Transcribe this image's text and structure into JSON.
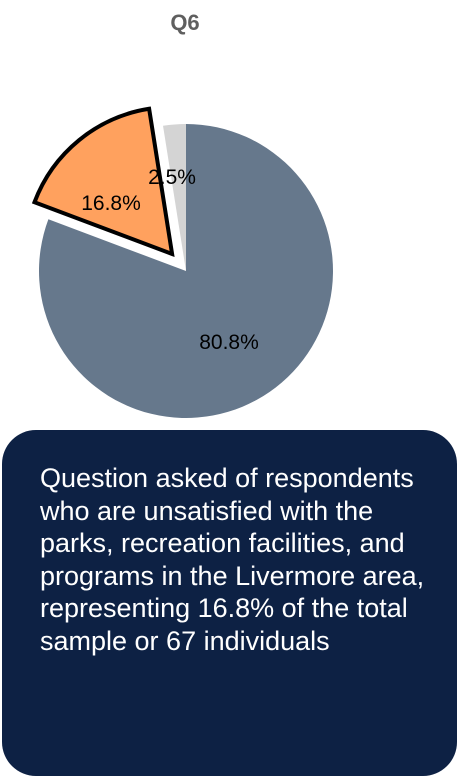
{
  "chart_data": {
    "type": "pie",
    "title": "Q6",
    "slices": [
      {
        "label": "80.8%",
        "value": 80.8,
        "color": "#66788c",
        "exploded": false,
        "outlined": false
      },
      {
        "label": "16.8%",
        "value": 16.8,
        "color": "#ffa15e",
        "exploded": true,
        "outlined": true
      },
      {
        "label": "2.5%",
        "value": 2.5,
        "color": "#d4d4d4",
        "exploded": false,
        "outlined": false
      }
    ],
    "legend": "none"
  },
  "note": {
    "text": "Question asked of respondents who are unsatisfied with the parks, recreation facilities, and programs in the Livermore area, representing 16.8% of the total sample or 67 individuals"
  }
}
